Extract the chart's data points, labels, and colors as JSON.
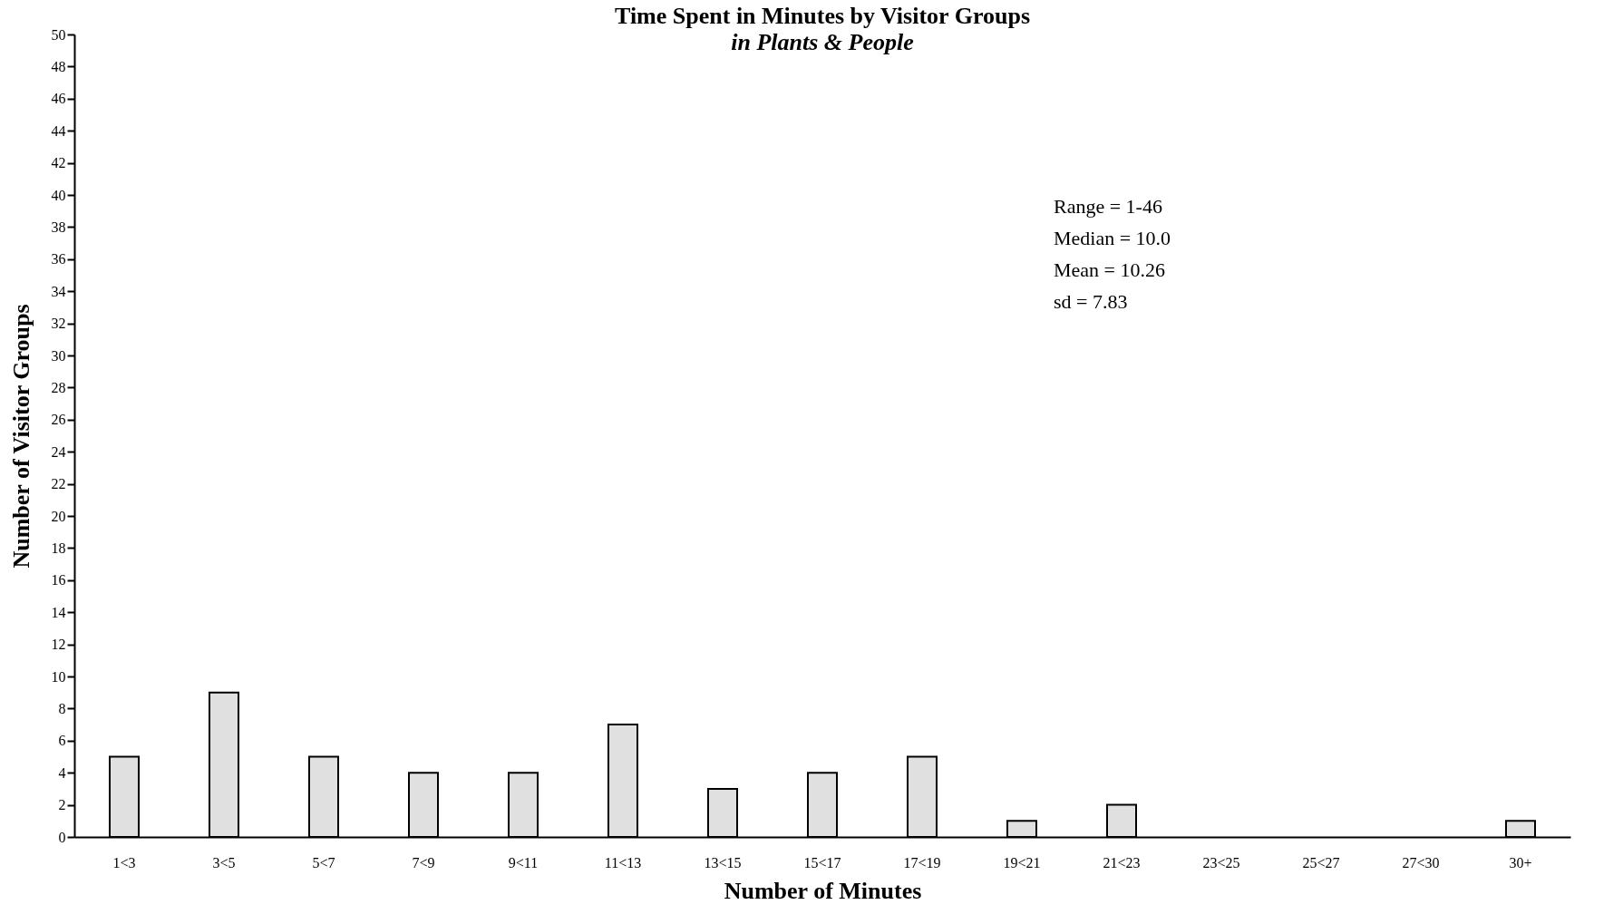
{
  "chart_data": {
    "type": "bar",
    "title": "Time Spent in Minutes by Visitor Groups",
    "subtitle": "in Plants & People",
    "xlabel": "Number of Minutes",
    "ylabel": "Number of Visitor Groups",
    "categories": [
      "1<3",
      "3<5",
      "5<7",
      "7<9",
      "9<11",
      "11<13",
      "13<15",
      "15<17",
      "17<19",
      "19<21",
      "21<23",
      "23<25",
      "25<27",
      "27<30",
      "30+"
    ],
    "values": [
      5,
      9,
      5,
      4,
      4,
      7,
      3,
      4,
      5,
      1,
      2,
      0,
      0,
      0,
      1
    ],
    "color": "#e0e0e0",
    "ylim": [
      0,
      50
    ],
    "yticks": [
      0,
      2,
      4,
      6,
      8,
      10,
      12,
      14,
      16,
      18,
      20,
      22,
      24,
      26,
      28,
      30,
      32,
      34,
      36,
      38,
      40,
      42,
      44,
      46,
      48,
      50
    ],
    "grid": false,
    "annotations": [
      "Range = 1-46",
      "Median = 10.0",
      "Mean = 10.26",
      "sd = 7.83"
    ]
  }
}
